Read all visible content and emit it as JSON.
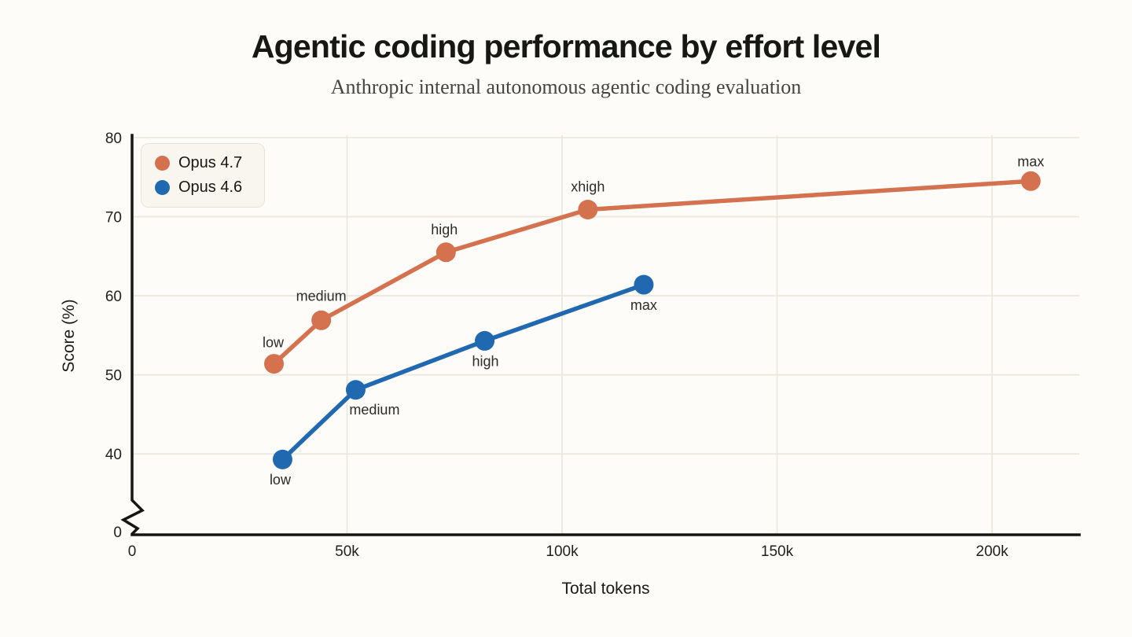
{
  "header": {
    "title": "Agentic coding performance by effort level",
    "subtitle": "Anthropic internal autonomous agentic coding evaluation"
  },
  "chart_data": {
    "type": "line",
    "title": "Agentic coding performance by effort level",
    "subtitle": "Anthropic internal autonomous agentic coding evaluation",
    "xlabel": "Total tokens",
    "ylabel": "Score (%)",
    "xlim": [
      0,
      220000
    ],
    "ylim": [
      0,
      80
    ],
    "y_axis_break": true,
    "grid": true,
    "legend_position": "top-left",
    "axis_color": "#161613",
    "grid_color": "#e9e6da",
    "x_ticks": [
      {
        "value": 0,
        "label": "0"
      },
      {
        "value": 50000,
        "label": "50k"
      },
      {
        "value": 100000,
        "label": "100k"
      },
      {
        "value": 150000,
        "label": "150k"
      },
      {
        "value": 200000,
        "label": "200k"
      }
    ],
    "y_ticks": [
      {
        "value": 0,
        "label": "0",
        "at_break": true
      },
      {
        "value": 40,
        "label": "40"
      },
      {
        "value": 50,
        "label": "50"
      },
      {
        "value": 60,
        "label": "60"
      },
      {
        "value": 70,
        "label": "70"
      },
      {
        "value": 80,
        "label": "80"
      }
    ],
    "series": [
      {
        "name": "Opus 4.7",
        "color": "#d4714e",
        "points": [
          {
            "label": "low",
            "x": 33000,
            "y": 51.4,
            "label_offset": [
              -1,
              -27
            ]
          },
          {
            "label": "medium",
            "x": 44000,
            "y": 56.9,
            "label_offset": [
              0,
              -31
            ]
          },
          {
            "label": "high",
            "x": 73000,
            "y": 65.5,
            "label_offset": [
              -2,
              -29
            ]
          },
          {
            "label": "xhigh",
            "x": 106000,
            "y": 70.9,
            "label_offset": [
              0,
              -29
            ]
          },
          {
            "label": "max",
            "x": 209000,
            "y": 74.5,
            "label_offset": [
              0,
              -25
            ]
          }
        ]
      },
      {
        "name": "Opus 4.6",
        "color": "#2069b0",
        "points": [
          {
            "label": "low",
            "x": 35000,
            "y": 39.3,
            "label_offset": [
              -3,
              26
            ]
          },
          {
            "label": "medium",
            "x": 52000,
            "y": 48.1,
            "label_offset": [
              24,
              25
            ]
          },
          {
            "label": "high",
            "x": 82000,
            "y": 54.3,
            "label_offset": [
              1,
              26
            ]
          },
          {
            "label": "max",
            "x": 119000,
            "y": 61.4,
            "label_offset": [
              0,
              26
            ]
          }
        ]
      }
    ]
  }
}
